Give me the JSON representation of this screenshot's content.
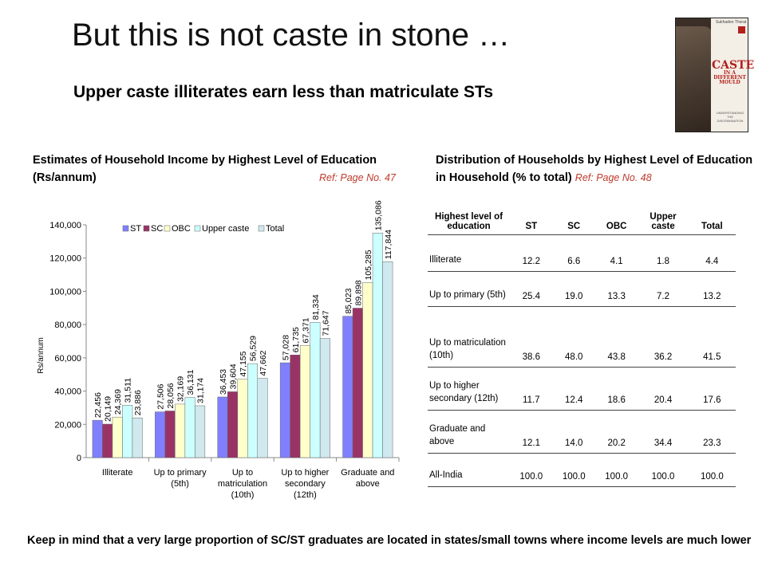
{
  "title": "But this is not caste in stone …",
  "subtitle": "Upper caste illiterates earn less than matriculate STs",
  "book": {
    "top_text": "Sukhadeo Thorat",
    "title_line1": "CASTE",
    "title_line2": "IN A",
    "title_line3": "DIFFERENT",
    "title_line4": "MOULD",
    "sub_text": "UNDERSTANDING THE DISCRIMINATION"
  },
  "chart_section": {
    "heading": "Estimates of Household Income by  Highest Level of Education (Rs/annum)",
    "ref": "Ref: Page No. 47"
  },
  "table_section": {
    "heading": "Distribution of Households by Highest Level of Education in Household (% to total)",
    "ref": "Ref: Page No. 48",
    "headers": [
      "Highest level of education",
      "ST",
      "SC",
      "OBC",
      "Upper caste",
      "Total"
    ],
    "rows": [
      {
        "label": "Illiterate",
        "values": [
          "12.2",
          "6.6",
          "4.1",
          "1.8",
          "4.4"
        ]
      },
      {
        "label": "Up to primary (5th)",
        "values": [
          "25.4",
          "19.0",
          "13.3",
          "7.2",
          "13.2"
        ]
      },
      {
        "label": "Up to matriculation (10th)",
        "values": [
          "38.6",
          "48.0",
          "43.8",
          "36.2",
          "41.5"
        ]
      },
      {
        "label": "Up to higher secondary  (12th)",
        "values": [
          "11.7",
          "12.4",
          "18.6",
          "20.4",
          "17.6"
        ]
      },
      {
        "label": "Graduate and above",
        "values": [
          "12.1",
          "14.0",
          "20.2",
          "34.4",
          "23.3"
        ]
      },
      {
        "label": "All-India",
        "values": [
          "100.0",
          "100.0",
          "100.0",
          "100.0",
          "100.0"
        ]
      }
    ]
  },
  "footer": "Keep in mind that a very large proportion of SC/ST graduates are located in states/small towns where income levels are much lower",
  "chart_data": {
    "type": "bar",
    "ylabel": "Rs/annum",
    "ylim": [
      0,
      140000
    ],
    "yticks": [
      "0",
      "20,000",
      "40,000",
      "60,000",
      "80,000",
      "100,000",
      "120,000",
      "140,000"
    ],
    "legend_position": "top-center",
    "categories": [
      "Illiterate",
      "Up to primary (5th)",
      "Up to matriculation (10th)",
      "Up to higher secondary (12th)",
      "Graduate and above"
    ],
    "series": [
      {
        "name": "ST",
        "color": "#8080ff",
        "values": [
          22456,
          27506,
          36453,
          57028,
          85023
        ],
        "labels": [
          "22,456",
          "27,506",
          "36,453",
          "57,028",
          "85,023"
        ]
      },
      {
        "name": "SC",
        "color": "#993366",
        "values": [
          20149,
          28056,
          39604,
          61735,
          89898
        ],
        "labels": [
          "20,149",
          "28,056",
          "39,604",
          "61,735",
          "89,898"
        ]
      },
      {
        "name": "OBC",
        "color": "#ffffcc",
        "values": [
          24369,
          32169,
          47155,
          67371,
          105285
        ],
        "labels": [
          "24,369",
          "32,169",
          "47,155",
          "67,371",
          "105,285"
        ]
      },
      {
        "name": "Upper caste",
        "color": "#ccffff",
        "values": [
          31511,
          36131,
          56529,
          81334,
          135086
        ],
        "labels": [
          "31,511",
          "36,131",
          "56,529",
          "81,334",
          "135,086"
        ]
      },
      {
        "name": "Total",
        "color": "#cfe9ee",
        "values": [
          23886,
          31174,
          47662,
          71647,
          117844
        ],
        "labels": [
          "23,886",
          "31,174",
          "47,662",
          "71,647",
          "117,844"
        ]
      }
    ]
  }
}
